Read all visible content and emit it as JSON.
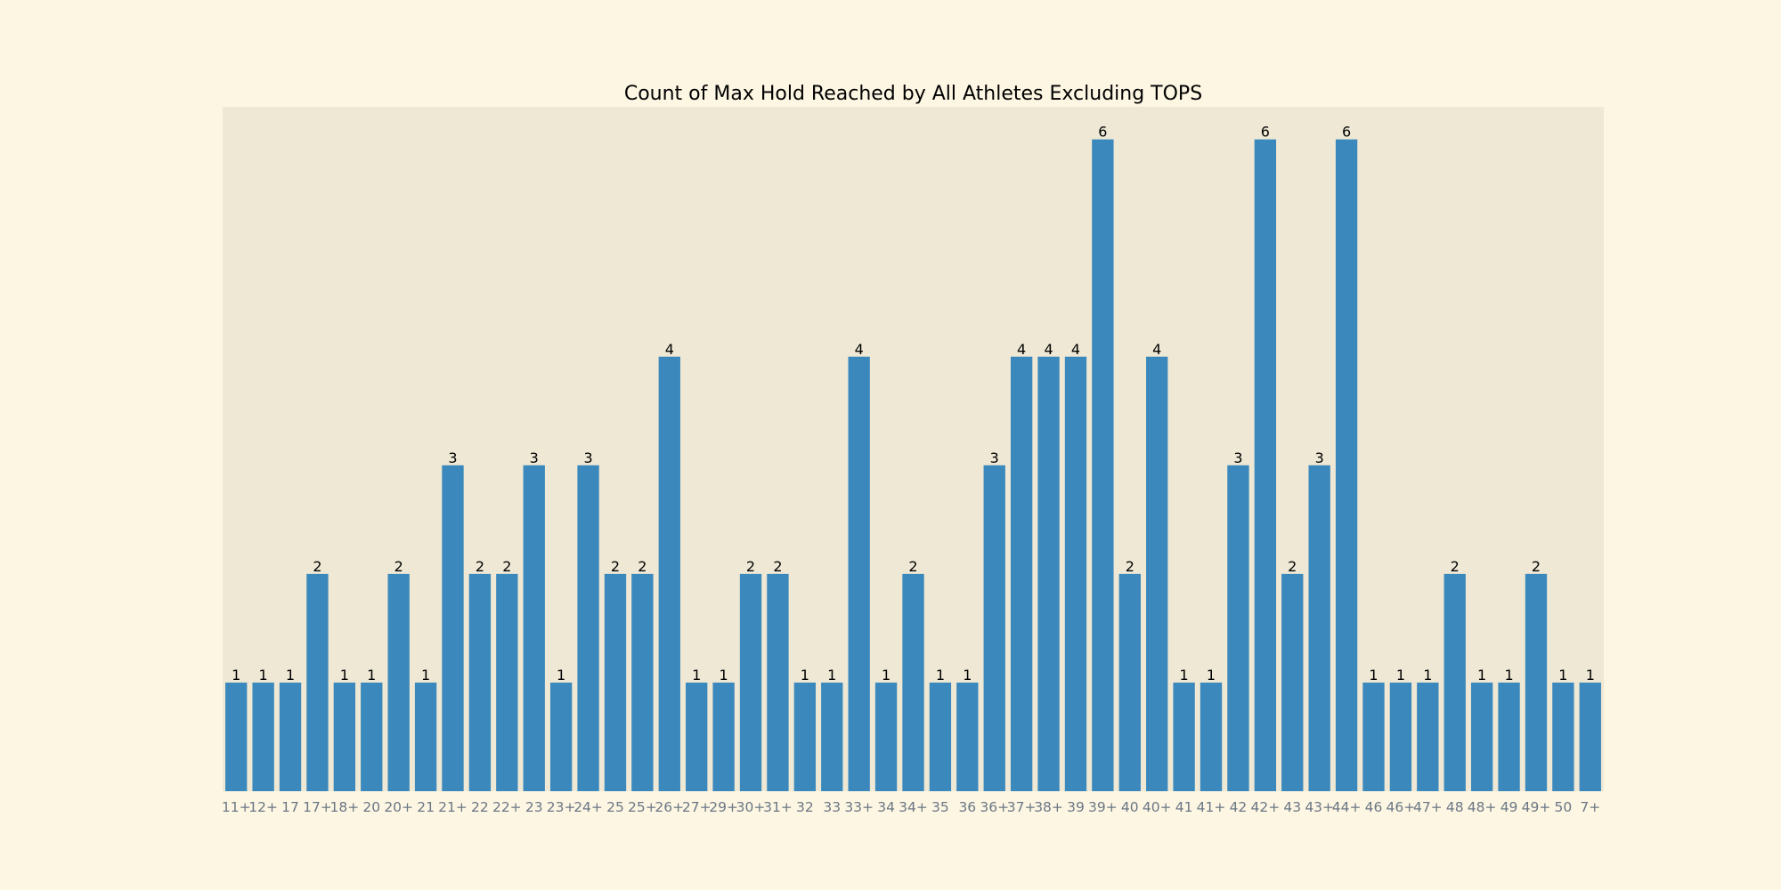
{
  "chart_data": {
    "type": "bar",
    "title": "Count of Max Hold Reached by All Athletes Excluding TOPS",
    "xlabel": "",
    "ylabel": "",
    "categories": [
      "11+",
      "12+",
      "17",
      "17+",
      "18+",
      "20",
      "20+",
      "21",
      "21+",
      "22",
      "22+",
      "23",
      "23+",
      "24+",
      "25",
      "25+",
      "26+",
      "27+",
      "29+",
      "30+",
      "31+",
      "32",
      "33",
      "33+",
      "34",
      "34+",
      "35",
      "36",
      "36+",
      "37+",
      "38+",
      "39",
      "39+",
      "40",
      "40+",
      "41",
      "41+",
      "42",
      "42+",
      "43",
      "43+",
      "44+",
      "46",
      "46+",
      "47+",
      "48",
      "48+",
      "49",
      "49+",
      "50",
      "7+"
    ],
    "values": [
      1,
      1,
      1,
      2,
      1,
      1,
      2,
      1,
      3,
      2,
      2,
      3,
      1,
      3,
      2,
      2,
      4,
      1,
      1,
      2,
      2,
      1,
      1,
      4,
      1,
      2,
      1,
      1,
      3,
      4,
      4,
      4,
      6,
      2,
      4,
      1,
      1,
      3,
      6,
      2,
      3,
      6,
      1,
      1,
      1,
      2,
      1,
      1,
      2,
      1,
      1
    ],
    "ylim": [
      0,
      6.3
    ],
    "grid": false,
    "bar_color": "#3b88bc",
    "plot_background": "#eee8d5",
    "figure_background": "#fdf6e3"
  }
}
